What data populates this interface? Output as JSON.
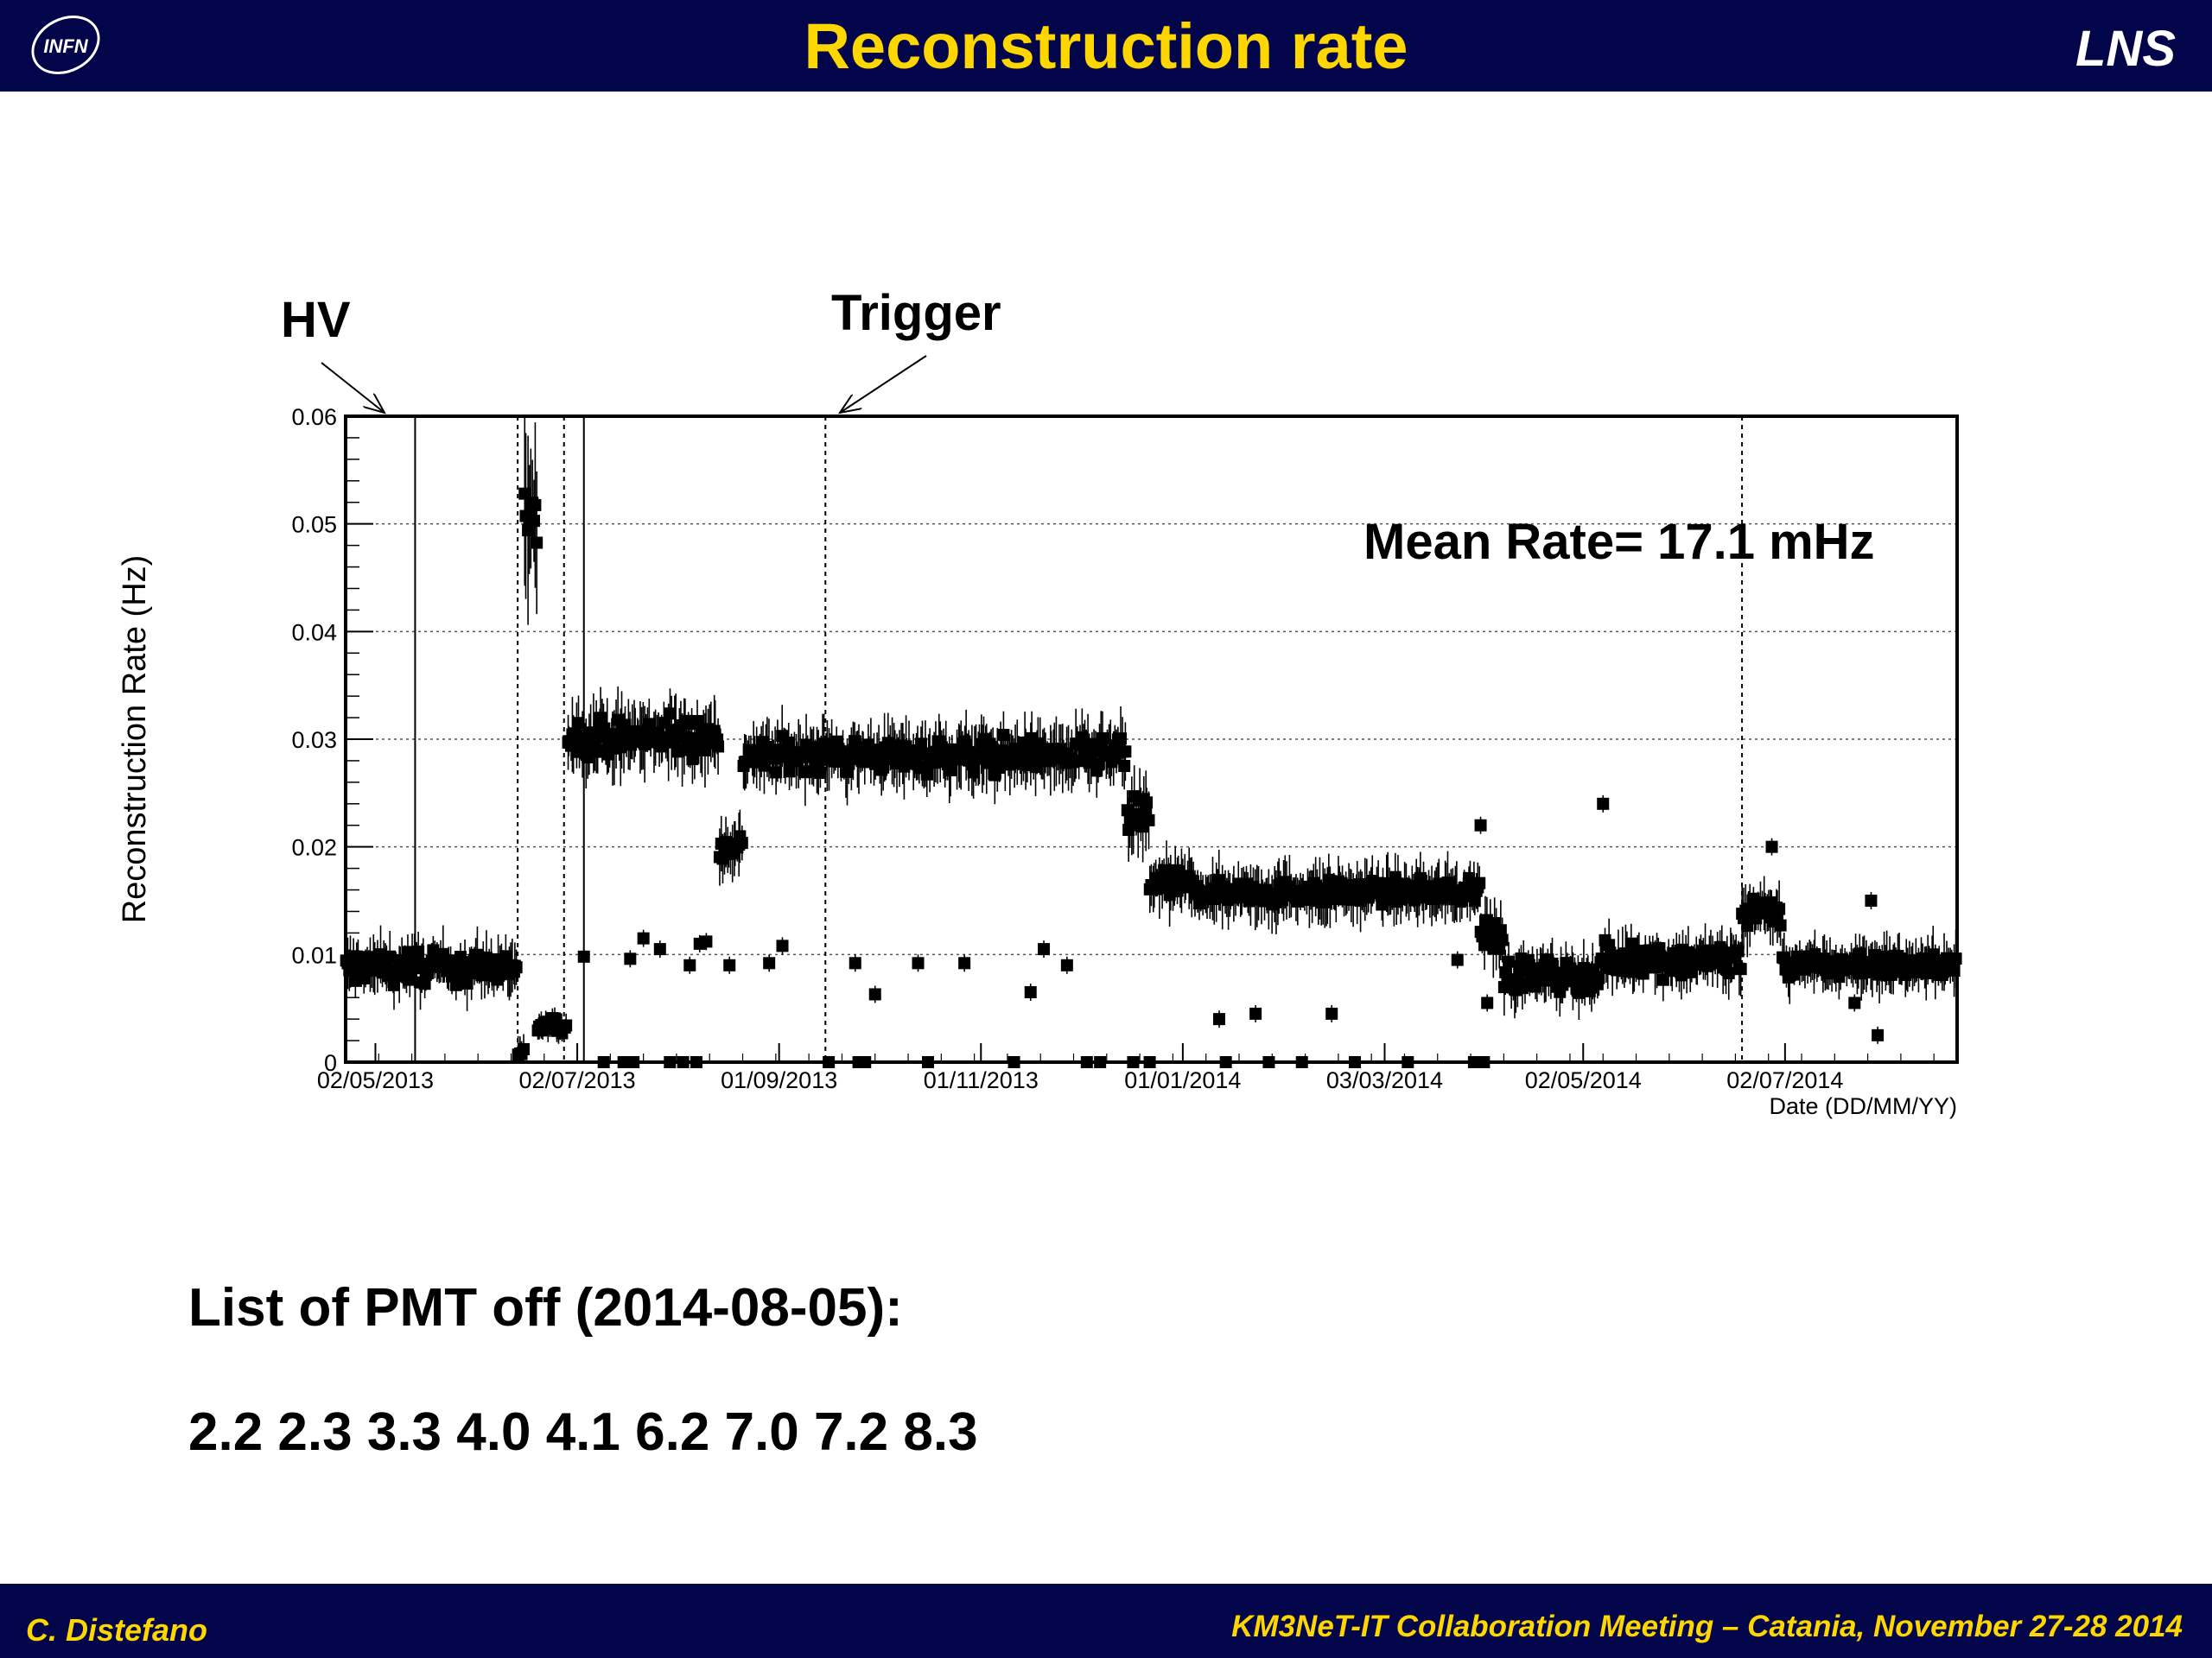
{
  "slide": {
    "title": "Reconstruction rate",
    "org_badge": "LNS",
    "logo_text": "INFN",
    "author": "C. Distefano",
    "meeting": "KM3NeT-IT Collaboration Meeting – Catania, November 27-28 2014"
  },
  "annotations": {
    "hv": "HV",
    "trigger": "Trigger",
    "mean_rate": "Mean Rate= 17.1 mHz"
  },
  "pmt_off": {
    "heading": "List of PMT off (2014-08-05):",
    "list": [
      "2.2",
      "2.3",
      "3.3",
      "4.0",
      "4.1",
      "6.2",
      "7.0",
      "7.2",
      "8.3"
    ]
  },
  "chart_data": {
    "type": "scatter",
    "title": "",
    "xlabel": "Date (DD/MM/YY)",
    "ylabel": "Reconstruction Rate (Hz)",
    "ylim": [
      0,
      0.06
    ],
    "xlim": [
      "2013-04-23",
      "2014-08-23"
    ],
    "grid": true,
    "marker": "filled-square-with-error-bars",
    "x_ticks": [
      "02/05/2013",
      "02/07/2013",
      "01/09/2013",
      "01/11/2013",
      "01/01/2014",
      "03/03/2014",
      "02/05/2014",
      "02/07/2014"
    ],
    "y_ticks": [
      "0",
      "0.01",
      "0.02",
      "0.03",
      "0.04",
      "0.05",
      "0.06"
    ],
    "vertical_markers": [
      "2013-05-14",
      "2013-06-14",
      "2013-06-28",
      "2013-07-04",
      "2013-09-15",
      "2014-06-19"
    ],
    "series": [
      {
        "segments": [
          {
            "from": "2013-04-23",
            "to": "2013-06-14",
            "mean": 0.0088,
            "spread": 0.0022,
            "err": 0.0018
          },
          {
            "from": "2013-06-14",
            "to": "2013-06-16",
            "mean": 0.001,
            "spread": 0.0008,
            "err": 0.0012
          },
          {
            "from": "2013-06-16",
            "to": "2013-06-20",
            "mean": 0.05,
            "spread": 0.0045,
            "err": 0.006
          },
          {
            "from": "2013-06-20",
            "to": "2013-06-29",
            "mean": 0.0033,
            "spread": 0.0012,
            "err": 0.001
          },
          {
            "from": "2013-06-29",
            "to": "2013-08-14",
            "mean": 0.0302,
            "spread": 0.0025,
            "err": 0.0025
          },
          {
            "from": "2013-08-14",
            "to": "2013-08-21",
            "mean": 0.02,
            "spread": 0.002,
            "err": 0.002
          },
          {
            "from": "2013-08-21",
            "to": "2013-12-15",
            "mean": 0.0285,
            "spread": 0.0022,
            "err": 0.0022
          },
          {
            "from": "2013-12-15",
            "to": "2013-12-22",
            "mean": 0.023,
            "spread": 0.0035,
            "err": 0.0025
          },
          {
            "from": "2013-12-22",
            "to": "2014-01-05",
            "mean": 0.0165,
            "spread": 0.0018,
            "err": 0.002
          },
          {
            "from": "2014-01-05",
            "to": "2014-04-01",
            "mean": 0.0158,
            "spread": 0.0016,
            "err": 0.002
          },
          {
            "from": "2014-04-01",
            "to": "2014-04-08",
            "mean": 0.012,
            "spread": 0.0025,
            "err": 0.002
          },
          {
            "from": "2014-04-08",
            "to": "2014-05-07",
            "mean": 0.008,
            "spread": 0.002,
            "err": 0.0018
          },
          {
            "from": "2014-05-07",
            "to": "2014-06-19",
            "mean": 0.0095,
            "spread": 0.0022,
            "err": 0.0018
          },
          {
            "from": "2014-06-19",
            "to": "2014-07-01",
            "mean": 0.014,
            "spread": 0.002,
            "err": 0.002
          },
          {
            "from": "2014-07-01",
            "to": "2014-08-23",
            "mean": 0.009,
            "spread": 0.0018,
            "err": 0.0018
          }
        ],
        "outliers": [
          [
            "2013-07-04",
            0.0098
          ],
          [
            "2013-07-18",
            0.0096
          ],
          [
            "2013-07-22",
            0.0115
          ],
          [
            "2013-07-27",
            0.0105
          ],
          [
            "2013-08-05",
            0.009
          ],
          [
            "2013-08-08",
            0.011
          ],
          [
            "2013-08-10",
            0.0112
          ],
          [
            "2013-08-17",
            0.009
          ],
          [
            "2013-08-29",
            0.0092
          ],
          [
            "2013-09-02",
            0.0108
          ],
          [
            "2013-09-24",
            0.0092
          ],
          [
            "2013-09-30",
            0.0063
          ],
          [
            "2013-10-13",
            0.0092
          ],
          [
            "2013-10-27",
            0.0092
          ],
          [
            "2013-11-16",
            0.0065
          ],
          [
            "2013-11-20",
            0.0105
          ],
          [
            "2013-11-27",
            0.009
          ],
          [
            "2014-01-12",
            0.004
          ],
          [
            "2014-01-23",
            0.0045
          ],
          [
            "2014-02-15",
            0.0045
          ],
          [
            "2014-03-25",
            0.0095
          ],
          [
            "2014-04-03",
            0.0055
          ],
          [
            "2014-05-08",
            0.024
          ],
          [
            "2014-04-01",
            0.022
          ],
          [
            "2014-06-28",
            0.02
          ],
          [
            "2014-07-23",
            0.0055
          ],
          [
            "2014-07-28",
            0.015
          ],
          [
            "2014-07-30",
            0.0025
          ]
        ],
        "zero_points": [
          "2013-07-10",
          "2013-07-16",
          "2013-07-19",
          "2013-07-30",
          "2013-08-03",
          "2013-08-07",
          "2013-09-16",
          "2013-09-25",
          "2013-09-27",
          "2013-10-16",
          "2013-11-11",
          "2013-12-03",
          "2013-12-07",
          "2013-12-17",
          "2013-12-22",
          "2014-01-14",
          "2014-01-27",
          "2014-02-06",
          "2014-02-22",
          "2014-03-10",
          "2014-03-30",
          "2014-04-02"
        ]
      }
    ]
  }
}
